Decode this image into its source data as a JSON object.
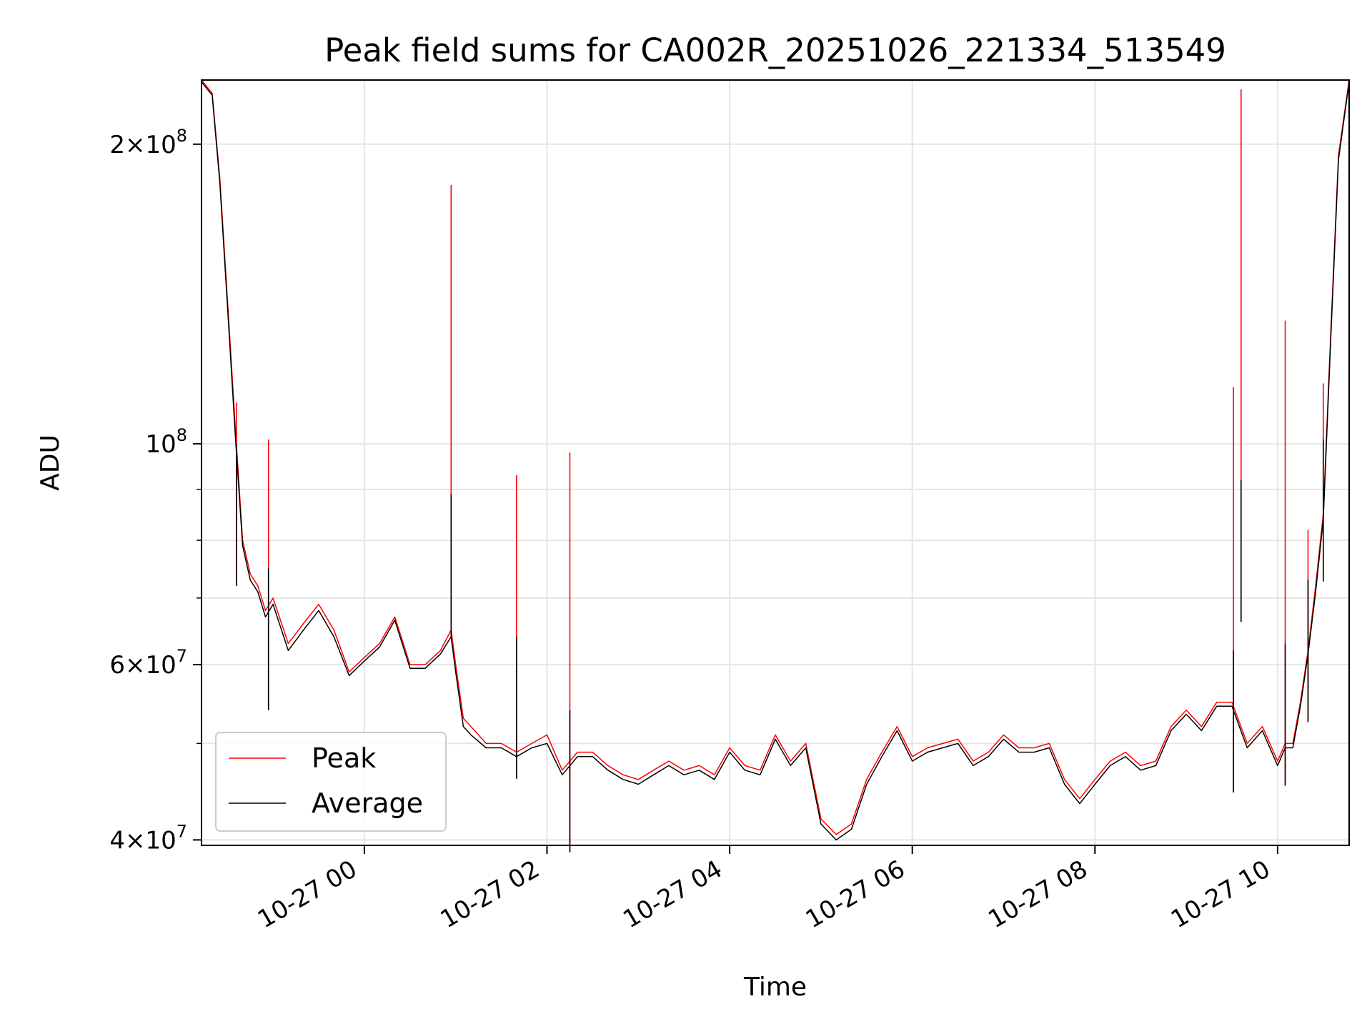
{
  "chart_data": {
    "type": "line",
    "title": "Peak field sums for CA002R_20251026_221334_513549",
    "xlabel": "Time",
    "ylabel": "ADU",
    "y_scale": "log",
    "ylim": [
      39500000,
      232000000
    ],
    "xlim": [
      "2025-10-26 22:13",
      "2025-10-27 10:47"
    ],
    "grid": true,
    "legend_position": "lower-left",
    "x_ticks": [
      {
        "label": "10-27 00",
        "t": "2025-10-27 00:00"
      },
      {
        "label": "10-27 02",
        "t": "2025-10-27 02:00"
      },
      {
        "label": "10-27 04",
        "t": "2025-10-27 04:00"
      },
      {
        "label": "10-27 06",
        "t": "2025-10-27 06:00"
      },
      {
        "label": "10-27 08",
        "t": "2025-10-27 08:00"
      },
      {
        "label": "10-27 10",
        "t": "2025-10-27 10:00"
      }
    ],
    "y_ticks_major": [
      {
        "value": 40000000,
        "mant": "4",
        "exp": "7"
      },
      {
        "value": 60000000,
        "mant": "6",
        "exp": "7"
      },
      {
        "value": 100000000,
        "mant": "",
        "exp": "8"
      },
      {
        "value": 200000000,
        "mant": "2",
        "exp": "8"
      }
    ],
    "y_ticks_minor": [
      50000000,
      70000000,
      80000000,
      90000000
    ],
    "series": [
      {
        "name": "Peak",
        "color": "#ff0000",
        "x": [
          "2025-10-26 22:13",
          "2025-10-26 22:20",
          "2025-10-26 22:25",
          "2025-10-26 22:30",
          "2025-10-26 22:35",
          "2025-10-26 22:40",
          "2025-10-26 22:45",
          "2025-10-26 22:50",
          "2025-10-26 22:55",
          "2025-10-26 23:00",
          "2025-10-26 23:10",
          "2025-10-26 23:20",
          "2025-10-26 23:30",
          "2025-10-26 23:40",
          "2025-10-26 23:50",
          "2025-10-27 00:00",
          "2025-10-27 00:10",
          "2025-10-27 00:20",
          "2025-10-27 00:30",
          "2025-10-27 00:40",
          "2025-10-27 00:50",
          "2025-10-27 00:57",
          "2025-10-27 01:00",
          "2025-10-27 01:05",
          "2025-10-27 01:10",
          "2025-10-27 01:20",
          "2025-10-27 01:30",
          "2025-10-27 01:40",
          "2025-10-27 01:50",
          "2025-10-27 02:00",
          "2025-10-27 02:10",
          "2025-10-27 02:20",
          "2025-10-27 02:30",
          "2025-10-27 02:40",
          "2025-10-27 02:50",
          "2025-10-27 03:00",
          "2025-10-27 03:10",
          "2025-10-27 03:20",
          "2025-10-27 03:30",
          "2025-10-27 03:40",
          "2025-10-27 03:50",
          "2025-10-27 04:00",
          "2025-10-27 04:10",
          "2025-10-27 04:20",
          "2025-10-27 04:30",
          "2025-10-27 04:40",
          "2025-10-27 04:50",
          "2025-10-27 05:00",
          "2025-10-27 05:10",
          "2025-10-27 05:20",
          "2025-10-27 05:30",
          "2025-10-27 05:40",
          "2025-10-27 05:50",
          "2025-10-27 06:00",
          "2025-10-27 06:10",
          "2025-10-27 06:20",
          "2025-10-27 06:30",
          "2025-10-27 06:40",
          "2025-10-27 06:50",
          "2025-10-27 07:00",
          "2025-10-27 07:10",
          "2025-10-27 07:20",
          "2025-10-27 07:30",
          "2025-10-27 07:40",
          "2025-10-27 07:50",
          "2025-10-27 08:00",
          "2025-10-27 08:10",
          "2025-10-27 08:20",
          "2025-10-27 08:30",
          "2025-10-27 08:40",
          "2025-10-27 08:50",
          "2025-10-27 09:00",
          "2025-10-27 09:10",
          "2025-10-27 09:20",
          "2025-10-27 09:30",
          "2025-10-27 09:40",
          "2025-10-27 09:50",
          "2025-10-27 10:00",
          "2025-10-27 10:05",
          "2025-10-27 10:10",
          "2025-10-27 10:15",
          "2025-10-27 10:20",
          "2025-10-27 10:25",
          "2025-10-27 10:30",
          "2025-10-27 10:35",
          "2025-10-27 10:40",
          "2025-10-27 10:47"
        ],
        "y": [
          232000000,
          225000000,
          185000000,
          140000000,
          105000000,
          80000000,
          74000000,
          72000000,
          68000000,
          70000000,
          63000000,
          66000000,
          69000000,
          65000000,
          59000000,
          61000000,
          63000000,
          67000000,
          60000000,
          60000000,
          62000000,
          65000000,
          60000000,
          53000000,
          52000000,
          50000000,
          50000000,
          49000000,
          50000000,
          51000000,
          47000000,
          49000000,
          49000000,
          47500000,
          46500000,
          46000000,
          47000000,
          48000000,
          47000000,
          47500000,
          46500000,
          49500000,
          47500000,
          47000000,
          51000000,
          48000000,
          50000000,
          42000000,
          40500000,
          41500000,
          46000000,
          49000000,
          52000000,
          48500000,
          49500000,
          50000000,
          50500000,
          48000000,
          49000000,
          51000000,
          49500000,
          49500000,
          50000000,
          46000000,
          44000000,
          46000000,
          48000000,
          49000000,
          47500000,
          48000000,
          52000000,
          54000000,
          52000000,
          55000000,
          55000000,
          50000000,
          52000000,
          48000000,
          50000000,
          50000000,
          55000000,
          62000000,
          72000000,
          85000000,
          130000000,
          195000000,
          232000000
        ]
      },
      {
        "name": "Average",
        "color": "#000000",
        "x": [
          "2025-10-26 22:13",
          "2025-10-26 22:20",
          "2025-10-26 22:25",
          "2025-10-26 22:30",
          "2025-10-26 22:35",
          "2025-10-26 22:40",
          "2025-10-26 22:45",
          "2025-10-26 22:50",
          "2025-10-26 22:55",
          "2025-10-26 23:00",
          "2025-10-26 23:10",
          "2025-10-26 23:20",
          "2025-10-26 23:30",
          "2025-10-26 23:40",
          "2025-10-26 23:50",
          "2025-10-27 00:00",
          "2025-10-27 00:10",
          "2025-10-27 00:20",
          "2025-10-27 00:30",
          "2025-10-27 00:40",
          "2025-10-27 00:50",
          "2025-10-27 00:57",
          "2025-10-27 01:00",
          "2025-10-27 01:05",
          "2025-10-27 01:10",
          "2025-10-27 01:20",
          "2025-10-27 01:30",
          "2025-10-27 01:40",
          "2025-10-27 01:50",
          "2025-10-27 02:00",
          "2025-10-27 02:10",
          "2025-10-27 02:20",
          "2025-10-27 02:30",
          "2025-10-27 02:40",
          "2025-10-27 02:50",
          "2025-10-27 03:00",
          "2025-10-27 03:10",
          "2025-10-27 03:20",
          "2025-10-27 03:30",
          "2025-10-27 03:40",
          "2025-10-27 03:50",
          "2025-10-27 04:00",
          "2025-10-27 04:10",
          "2025-10-27 04:20",
          "2025-10-27 04:30",
          "2025-10-27 04:40",
          "2025-10-27 04:50",
          "2025-10-27 05:00",
          "2025-10-27 05:10",
          "2025-10-27 05:20",
          "2025-10-27 05:30",
          "2025-10-27 05:40",
          "2025-10-27 05:50",
          "2025-10-27 06:00",
          "2025-10-27 06:10",
          "2025-10-27 06:20",
          "2025-10-27 06:30",
          "2025-10-27 06:40",
          "2025-10-27 06:50",
          "2025-10-27 07:00",
          "2025-10-27 07:10",
          "2025-10-27 07:20",
          "2025-10-27 07:30",
          "2025-10-27 07:40",
          "2025-10-27 07:50",
          "2025-10-27 08:00",
          "2025-10-27 08:10",
          "2025-10-27 08:20",
          "2025-10-27 08:30",
          "2025-10-27 08:40",
          "2025-10-27 08:50",
          "2025-10-27 09:00",
          "2025-10-27 09:10",
          "2025-10-27 09:20",
          "2025-10-27 09:30",
          "2025-10-27 09:40",
          "2025-10-27 09:50",
          "2025-10-27 10:00",
          "2025-10-27 10:05",
          "2025-10-27 10:10",
          "2025-10-27 10:15",
          "2025-10-27 10:20",
          "2025-10-27 10:25",
          "2025-10-27 10:30",
          "2025-10-27 10:35",
          "2025-10-27 10:40",
          "2025-10-27 10:47"
        ],
        "y": [
          231000000,
          224000000,
          183000000,
          138000000,
          103000000,
          79000000,
          73000000,
          71000000,
          67000000,
          69000000,
          62000000,
          65000000,
          68000000,
          64000000,
          58500000,
          60500000,
          62500000,
          66500000,
          59500000,
          59500000,
          61500000,
          64000000,
          59000000,
          52000000,
          51000000,
          49500000,
          49500000,
          48500000,
          49500000,
          50000000,
          46500000,
          48500000,
          48500000,
          47000000,
          46000000,
          45500000,
          46500000,
          47500000,
          46500000,
          47000000,
          46000000,
          49000000,
          47000000,
          46500000,
          50500000,
          47500000,
          49500000,
          41500000,
          40000000,
          41000000,
          45500000,
          48500000,
          51500000,
          48000000,
          49000000,
          49500000,
          50000000,
          47500000,
          48500000,
          50500000,
          49000000,
          49000000,
          49500000,
          45500000,
          43500000,
          45500000,
          47500000,
          48500000,
          47000000,
          47500000,
          51500000,
          53500000,
          51500000,
          54500000,
          54500000,
          49500000,
          51500000,
          47500000,
          49500000,
          49500000,
          54500000,
          61500000,
          71000000,
          84000000,
          128000000,
          193000000,
          231000000
        ]
      }
    ],
    "spikes": [
      {
        "t": "2025-10-26 22:36",
        "peak": 110000000,
        "average": 100000000
      },
      {
        "t": "2025-10-26 22:57",
        "peak": 101000000,
        "average": 75000000
      },
      {
        "t": "2025-10-27 00:57",
        "peak": 182000000,
        "average": 89000000
      },
      {
        "t": "2025-10-27 01:40",
        "peak": 93000000,
        "average": 64000000
      },
      {
        "t": "2025-10-27 02:15",
        "peak": 98000000,
        "average": 54000000
      },
      {
        "t": "2025-10-27 09:31",
        "peak": 114000000,
        "average": 62000000
      },
      {
        "t": "2025-10-27 09:36",
        "peak": 227000000,
        "average": 92000000
      },
      {
        "t": "2025-10-27 10:05",
        "peak": 133000000,
        "average": 63000000
      },
      {
        "t": "2025-10-27 10:20",
        "peak": 82000000,
        "average": 73000000
      },
      {
        "t": "2025-10-27 10:30",
        "peak": 115000000,
        "average": 101000000
      }
    ]
  },
  "legend": {
    "items": [
      {
        "label": "Peak",
        "color": "#ff0000"
      },
      {
        "label": "Average",
        "color": "#000000"
      }
    ]
  }
}
